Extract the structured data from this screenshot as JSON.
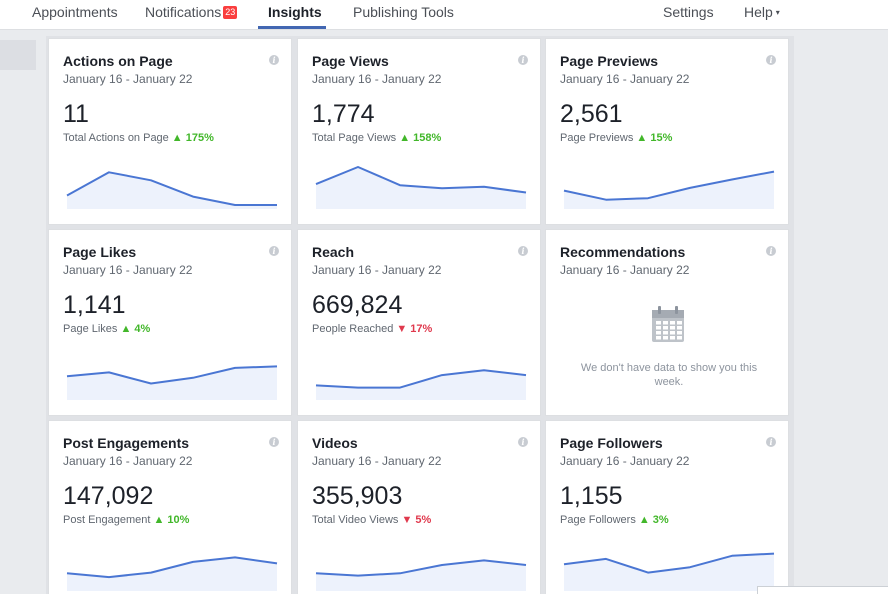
{
  "nav": {
    "tabs": [
      {
        "label": "Appointments"
      },
      {
        "label": "Notifications",
        "badge": "23"
      },
      {
        "label": "Insights",
        "active": true
      },
      {
        "label": "Publishing Tools"
      },
      {
        "label": "Settings"
      },
      {
        "label": "Help",
        "caret": "▾"
      }
    ]
  },
  "info_glyph": "i",
  "cards": [
    {
      "title": "Actions on Page",
      "date_range": "January 16 - January 22",
      "value": "11",
      "sub_label": "Total Actions on Page",
      "trend_arrow": "▲",
      "trend_value": "175%",
      "trend_dir": "up",
      "spark": [
        0.25,
        0.86,
        0.65,
        0.22,
        0.0,
        0.0
      ]
    },
    {
      "title": "Page Views",
      "date_range": "January 16 - January 22",
      "value": "1,774",
      "sub_label": "Total Page Views",
      "trend_arrow": "▲",
      "trend_value": "158%",
      "trend_dir": "up",
      "spark": [
        0.55,
        1.0,
        0.52,
        0.44,
        0.48,
        0.33
      ]
    },
    {
      "title": "Page Previews",
      "date_range": "January 16 - January 22",
      "value": "2,561",
      "sub_label": "Page Previews",
      "trend_arrow": "▲",
      "trend_value": "15%",
      "trend_dir": "up",
      "spark": [
        0.38,
        0.14,
        0.18,
        0.45,
        0.67,
        0.88
      ]
    },
    {
      "title": "Page Likes",
      "date_range": "January 16 - January 22",
      "value": "1,141",
      "sub_label": "Page Likes",
      "trend_arrow": "▲",
      "trend_value": "4%",
      "trend_dir": "up",
      "spark": [
        0.52,
        0.62,
        0.33,
        0.48,
        0.74,
        0.78
      ]
    },
    {
      "title": "Reach",
      "date_range": "January 16 - January 22",
      "value": "669,824",
      "sub_label": "People Reached",
      "trend_arrow": "▼",
      "trend_value": "17%",
      "trend_dir": "down",
      "spark": [
        0.28,
        0.22,
        0.22,
        0.55,
        0.68,
        0.55
      ]
    },
    {
      "title": "Recommendations",
      "date_range": "January 16 - January 22",
      "empty": true,
      "empty_message": "We don't have data to show you this week.",
      "empty_icon": "calendar-icon"
    },
    {
      "title": "Post Engagements",
      "date_range": "January 16 - January 22",
      "value": "147,092",
      "sub_label": "Post Engagement",
      "trend_arrow": "▲",
      "trend_value": "10%",
      "trend_dir": "up",
      "spark": [
        0.36,
        0.26,
        0.38,
        0.66,
        0.78,
        0.62
      ]
    },
    {
      "title": "Videos",
      "date_range": "January 16 - January 22",
      "value": "355,903",
      "sub_label": "Total Video Views",
      "trend_arrow": "▼",
      "trend_value": "5%",
      "trend_dir": "down",
      "spark": [
        0.36,
        0.3,
        0.36,
        0.58,
        0.7,
        0.58
      ]
    },
    {
      "title": "Page Followers",
      "date_range": "January 16 - January 22",
      "value": "1,155",
      "sub_label": "Page Followers",
      "trend_arrow": "▲",
      "trend_value": "3%",
      "trend_dir": "up",
      "spark": [
        0.6,
        0.74,
        0.38,
        0.52,
        0.82,
        0.88
      ]
    }
  ],
  "colors": {
    "accent": "#4267b2",
    "spark_line": "#4a76d3",
    "spark_fill": "#edf2fc",
    "up": "#42b72a",
    "down": "#e0394d",
    "badge": "#fa3e3e"
  }
}
